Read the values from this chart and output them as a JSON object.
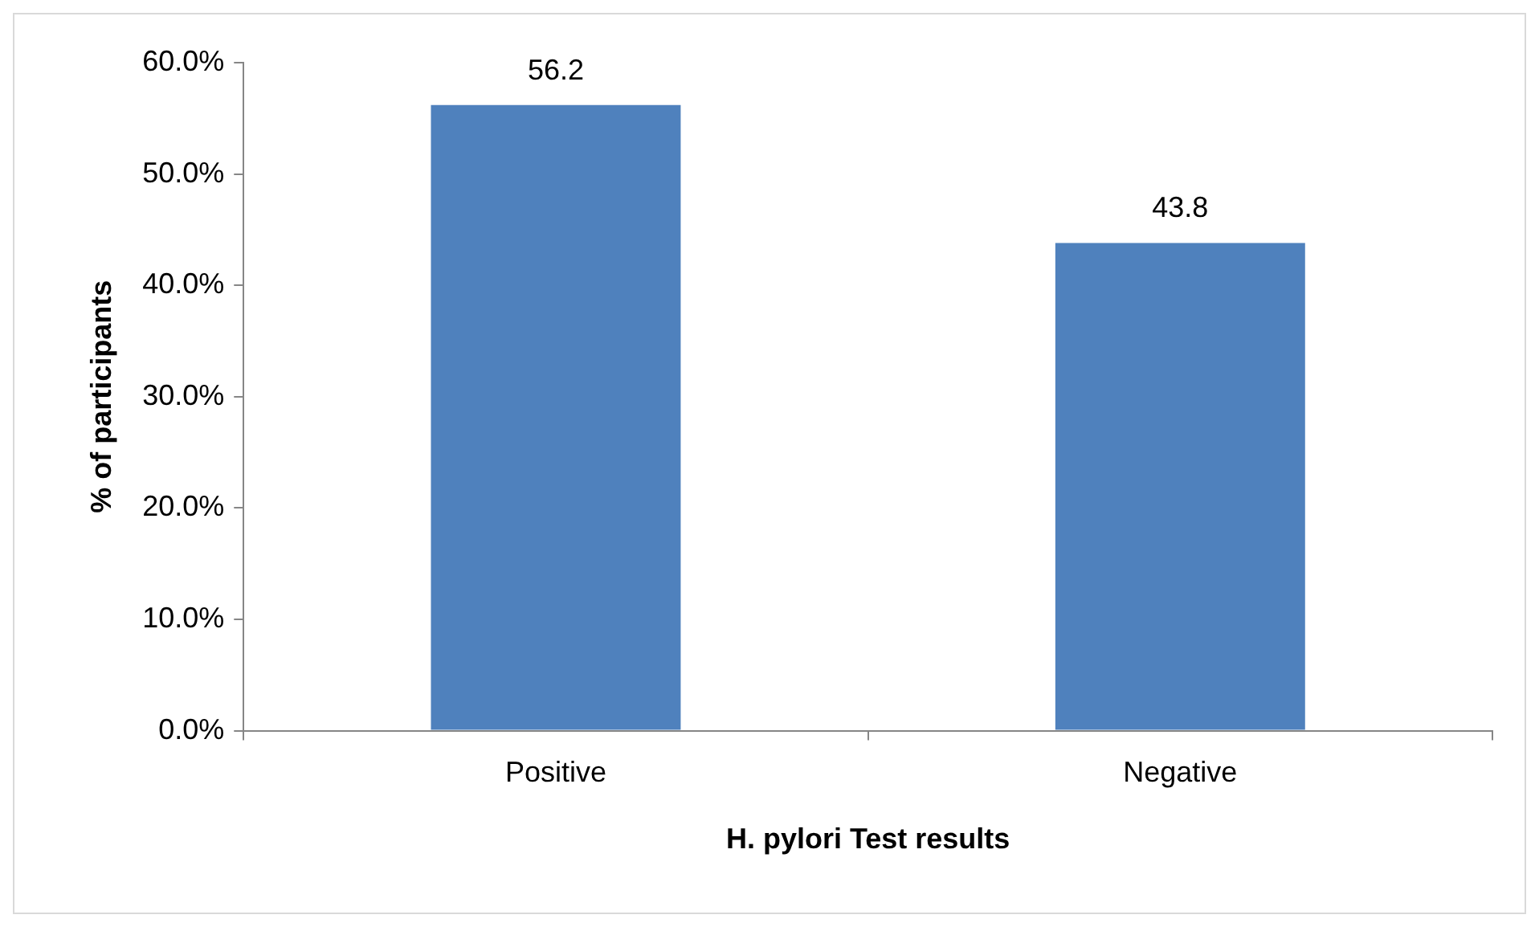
{
  "chart_data": {
    "type": "bar",
    "xlabel": "H. pylori Test results",
    "ylabel": "% of participants",
    "categories": [
      "Positive",
      "Negative"
    ],
    "values": [
      56.2,
      43.8
    ],
    "color": "#4f81bd",
    "ylim": [
      0,
      60
    ],
    "yticks": [
      {
        "value": 0,
        "label": "0.0%"
      },
      {
        "value": 10,
        "label": "10.0%"
      },
      {
        "value": 20,
        "label": "20.0%"
      },
      {
        "value": 30,
        "label": "30.0%"
      },
      {
        "value": 40,
        "label": "40.0%"
      },
      {
        "value": 50,
        "label": "50.0%"
      },
      {
        "value": 60,
        "label": "60.0%"
      }
    ],
    "data_labels": true,
    "grid": false,
    "legend": false
  }
}
